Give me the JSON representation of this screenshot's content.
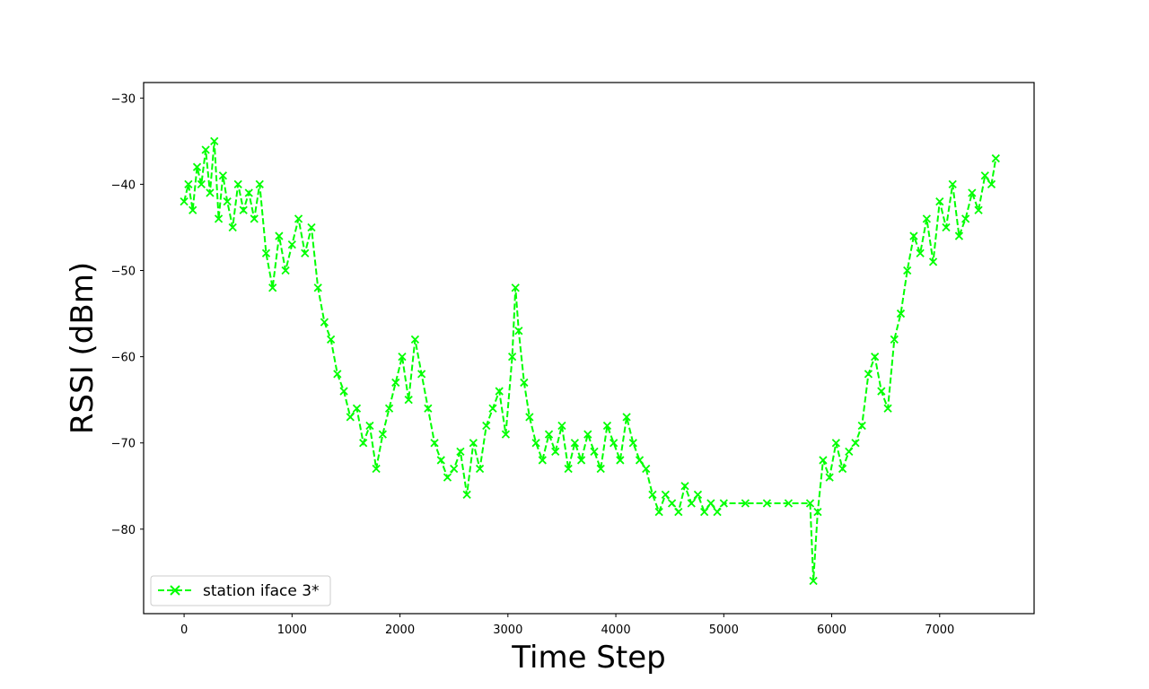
{
  "chart_data": {
    "type": "line",
    "title": "",
    "xlabel": "Time Step",
    "ylabel": "RSSI (dBm)",
    "xlim": [
      -375,
      7875
    ],
    "ylim": [
      -89.8,
      -28.2
    ],
    "xticks": [
      0,
      1000,
      2000,
      3000,
      4000,
      5000,
      6000,
      7000
    ],
    "yticks": [
      -30,
      -40,
      -50,
      -60,
      -70,
      -80
    ],
    "grid": false,
    "legend_position": "lower-left",
    "series": [
      {
        "name": "station iface 3*",
        "color": "#00ff00",
        "linestyle": "dashed",
        "marker": "x",
        "x": [
          0,
          40,
          80,
          120,
          160,
          200,
          240,
          280,
          320,
          360,
          400,
          450,
          500,
          550,
          600,
          650,
          700,
          760,
          820,
          880,
          940,
          1000,
          1060,
          1120,
          1180,
          1240,
          1300,
          1360,
          1420,
          1480,
          1540,
          1600,
          1660,
          1720,
          1780,
          1840,
          1900,
          1960,
          2020,
          2080,
          2140,
          2200,
          2260,
          2320,
          2380,
          2440,
          2500,
          2560,
          2620,
          2680,
          2740,
          2800,
          2860,
          2920,
          2980,
          3040,
          3070,
          3100,
          3150,
          3200,
          3260,
          3320,
          3380,
          3440,
          3500,
          3560,
          3620,
          3680,
          3740,
          3800,
          3860,
          3920,
          3980,
          4040,
          4100,
          4160,
          4220,
          4280,
          4340,
          4400,
          4460,
          4520,
          4580,
          4640,
          4700,
          4760,
          4820,
          4880,
          4940,
          5000,
          5200,
          5400,
          5600,
          5800,
          5830,
          5870,
          5920,
          5980,
          6040,
          6100,
          6160,
          6220,
          6280,
          6340,
          6400,
          6460,
          6520,
          6580,
          6640,
          6700,
          6760,
          6820,
          6880,
          6940,
          7000,
          7060,
          7120,
          7180,
          7240,
          7300,
          7360,
          7420,
          7480,
          7520
        ],
        "y": [
          -42,
          -40,
          -43,
          -38,
          -40,
          -36,
          -41,
          -35,
          -44,
          -39,
          -42,
          -45,
          -40,
          -43,
          -41,
          -44,
          -40,
          -48,
          -52,
          -46,
          -50,
          -47,
          -44,
          -48,
          -45,
          -52,
          -56,
          -58,
          -62,
          -64,
          -67,
          -66,
          -70,
          -68,
          -73,
          -69,
          -66,
          -63,
          -60,
          -65,
          -58,
          -62,
          -66,
          -70,
          -72,
          -74,
          -73,
          -71,
          -76,
          -70,
          -73,
          -68,
          -66,
          -64,
          -69,
          -60,
          -52,
          -57,
          -63,
          -67,
          -70,
          -72,
          -69,
          -71,
          -68,
          -73,
          -70,
          -72,
          -69,
          -71,
          -73,
          -68,
          -70,
          -72,
          -67,
          -70,
          -72,
          -73,
          -76,
          -78,
          -76,
          -77,
          -78,
          -75,
          -77,
          -76,
          -78,
          -77,
          -78,
          -77,
          -77,
          -77,
          -77,
          -77,
          -86,
          -78,
          -72,
          -74,
          -70,
          -73,
          -71,
          -70,
          -68,
          -62,
          -60,
          -64,
          -66,
          -58,
          -55,
          -50,
          -46,
          -48,
          -44,
          -49,
          -42,
          -45,
          -40,
          -46,
          -44,
          -41,
          -43,
          -39,
          -40,
          -37
        ]
      }
    ]
  }
}
